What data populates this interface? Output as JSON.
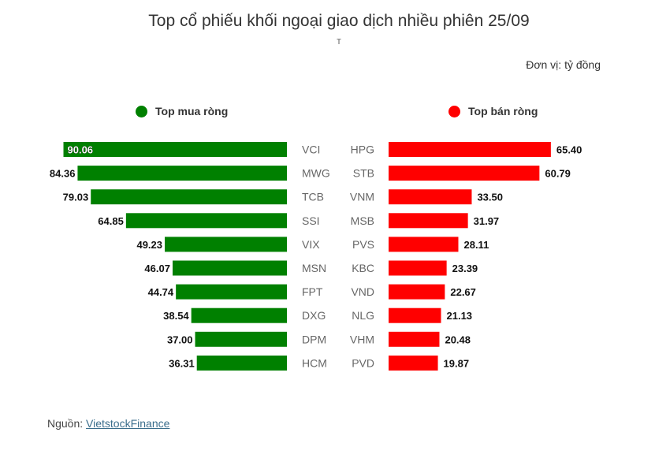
{
  "title": "Top cổ phiếu khối ngoại giao dịch nhiều phiên 25/09",
  "subtitle": "T",
  "unit": "Đơn vị: tỷ đồng",
  "source": {
    "label": "Nguồn: ",
    "link_text": "VietstockFinance"
  },
  "colors": {
    "buy": "#008000",
    "sell": "#ff0000"
  },
  "chart_data": [
    {
      "type": "bar",
      "orientation": "horizontal",
      "name": "Top mua ròng",
      "categories": [
        "VCI",
        "MWG",
        "TCB",
        "SSI",
        "VIX",
        "MSN",
        "FPT",
        "DXG",
        "DPM",
        "HCM"
      ],
      "values": [
        90.06,
        84.36,
        79.03,
        64.85,
        49.23,
        46.07,
        44.74,
        38.54,
        37.0,
        36.31
      ],
      "labels": [
        "90.06",
        "84.36",
        "79.03",
        "64.85",
        "49.23",
        "46.07",
        "44.74",
        "38.54",
        "37.00",
        "36.31"
      ],
      "direction": "left"
    },
    {
      "type": "bar",
      "orientation": "horizontal",
      "name": "Top bán ròng",
      "categories": [
        "HPG",
        "STB",
        "VNM",
        "MSB",
        "PVS",
        "KBC",
        "VND",
        "NLG",
        "VHM",
        "PVD"
      ],
      "values": [
        65.4,
        60.79,
        33.5,
        31.97,
        28.11,
        23.39,
        22.67,
        21.13,
        20.48,
        19.87
      ],
      "labels": [
        "65.40",
        "60.79",
        "33.50",
        "31.97",
        "28.11",
        "23.39",
        "22.67",
        "21.13",
        "20.48",
        "19.87"
      ],
      "direction": "right"
    }
  ]
}
